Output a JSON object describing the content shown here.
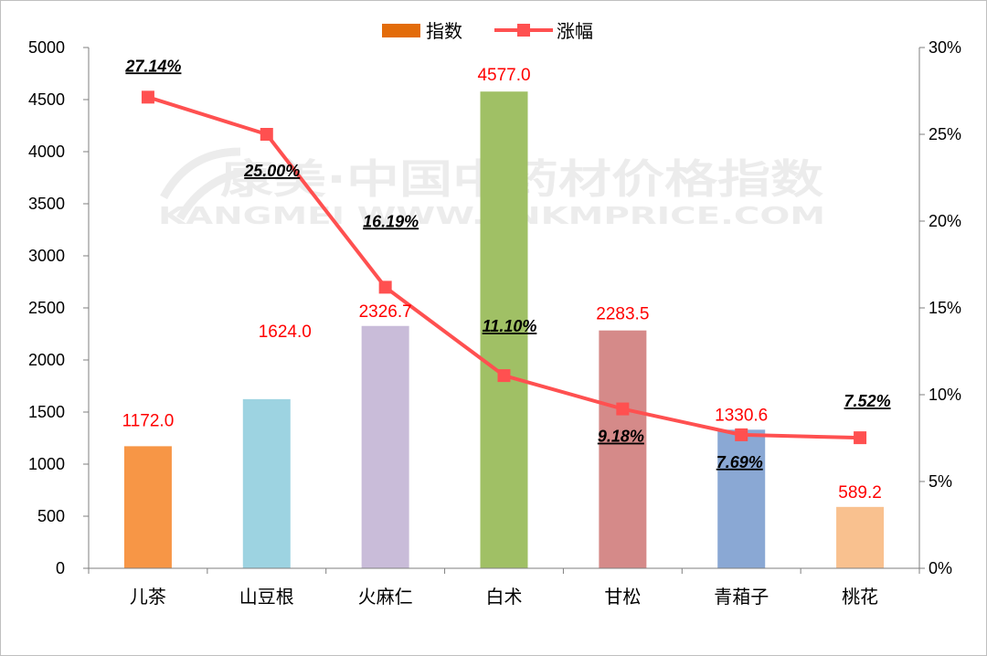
{
  "chart_data": {
    "type": "bar",
    "categories": [
      "儿茶",
      "山豆根",
      "火麻仁",
      "白术",
      "甘松",
      "青葙子",
      "桃花"
    ],
    "series": [
      {
        "name": "指数",
        "type": "bar",
        "axis": "left",
        "values": [
          1172.0,
          1624.0,
          2326.7,
          4577.0,
          2283.5,
          1330.6,
          589.2
        ],
        "labels": [
          "1172.0",
          "1624.0",
          "2326.7",
          "4577.0",
          "2283.5",
          "1330.6",
          "589.2"
        ],
        "colors": [
          "#f79646",
          "#9dd3e1",
          "#c9bcd9",
          "#a0c065",
          "#d58a89",
          "#8aa8d4",
          "#f9c18f"
        ]
      },
      {
        "name": "涨幅",
        "type": "line",
        "axis": "right",
        "values": [
          27.14,
          25.0,
          16.19,
          11.1,
          9.18,
          7.69,
          7.52
        ],
        "labels": [
          "27.14%",
          "25.00%",
          "16.19%",
          "11.10%",
          "9.18%",
          "7.69%",
          "7.52%"
        ],
        "color": "#ff5050"
      }
    ],
    "ylim": [
      0,
      5000
    ],
    "yticks": [
      "0",
      "500",
      "1000",
      "1500",
      "2000",
      "2500",
      "3000",
      "3500",
      "4000",
      "4500",
      "5000"
    ],
    "y2lim": [
      0,
      30
    ],
    "y2ticks": [
      "0%",
      "5%",
      "10%",
      "15%",
      "20%",
      "25%",
      "30%"
    ],
    "grid": false,
    "legend": "top-center",
    "value_label_color": "#ff0000",
    "legend_bar_color": "#e36c0a",
    "watermark": {
      "line1": "康美·中国中药材价格指数",
      "line2": "KANGMEI WWW.CNKMPRICE.COM"
    }
  }
}
